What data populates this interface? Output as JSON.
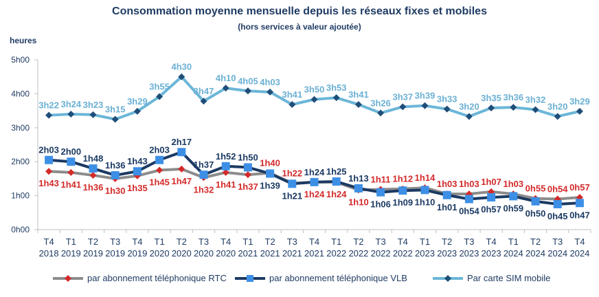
{
  "chart_data": {
    "type": "line",
    "title": "Consommation moyenne mensuelle depuis les réseaux fixes et mobiles",
    "subtitle": "(hors services à valeur ajoutée)",
    "ylabel": "heures",
    "ylim": [
      "0h00",
      "5h00"
    ],
    "yticks": [
      "0h00",
      "1h00",
      "2h00",
      "3h00",
      "4h00",
      "5h00"
    ],
    "grid": false,
    "legend": "bottom",
    "categories": [
      [
        "T4",
        "2018"
      ],
      [
        "T1",
        "2019"
      ],
      [
        "T2",
        "2019"
      ],
      [
        "T3",
        "2019"
      ],
      [
        "T4",
        "2019"
      ],
      [
        "T1",
        "2020"
      ],
      [
        "T2",
        "2020"
      ],
      [
        "T3",
        "2020"
      ],
      [
        "T4",
        "2020"
      ],
      [
        "T1",
        "2021"
      ],
      [
        "T2",
        "2021"
      ],
      [
        "T3",
        "2021"
      ],
      [
        "T4",
        "2021"
      ],
      [
        "T1",
        "2022"
      ],
      [
        "T2",
        "2022"
      ],
      [
        "T3",
        "2022"
      ],
      [
        "T4",
        "2022"
      ],
      [
        "T1",
        "2023"
      ],
      [
        "T2",
        "2023"
      ],
      [
        "T3",
        "2023"
      ],
      [
        "T4",
        "2023"
      ],
      [
        "T1",
        "2024"
      ],
      [
        "T2",
        "2024"
      ],
      [
        "T3",
        "2024"
      ],
      [
        "T4",
        "2024"
      ]
    ],
    "series": [
      {
        "name": "par abonnement téléphonique RTC",
        "line_color": "#8c8c8c",
        "marker_color": "#d42a2a",
        "label_color": "#d42a2a",
        "marker": "diamond",
        "values": [
          "1h43",
          "1h41",
          "1h36",
          "1h30",
          "1h35",
          "1h45",
          "1h47",
          "1h32",
          "1h41",
          "1h37",
          "1h40",
          "1h22",
          "1h24",
          "1h24",
          "1h10",
          "1h11",
          "1h12",
          "1h14",
          "1h03",
          "1h03",
          "1h07",
          "1h03",
          "0h55",
          "0h54",
          "0h57"
        ]
      },
      {
        "name": "par abonnement téléphonique VLB",
        "line_color": "#1b3a63",
        "marker_color": "#3d8fe6",
        "label_color": "#1b3a63",
        "marker": "square",
        "values": [
          "2h03",
          "2h00",
          "1h48",
          "1h36",
          "1h43",
          "2h03",
          "2h17",
          "1h37",
          "1h52",
          "1h50",
          "1h39",
          "1h21",
          "1h24",
          "1h25",
          "1h13",
          "1h06",
          "1h09",
          "1h10",
          "1h01",
          "0h54",
          "0h57",
          "0h59",
          "0h50",
          "0h45",
          "0h47"
        ]
      },
      {
        "name": "Par carte SIM mobile",
        "line_color": "#6bb6d8",
        "marker_color": "#1f4e79",
        "label_color": "#6bb0d4",
        "marker": "diamond",
        "values": [
          "3h22",
          "3h24",
          "3h23",
          "3h15",
          "3h29",
          "3h55",
          "4h30",
          "3h47",
          "4h10",
          "4h05",
          "4h03",
          "3h41",
          "3h50",
          "3h53",
          "3h41",
          "3h26",
          "3h37",
          "3h39",
          "3h33",
          "3h20",
          "3h35",
          "3h36",
          "3h32",
          "3h20",
          "3h29"
        ]
      }
    ]
  }
}
